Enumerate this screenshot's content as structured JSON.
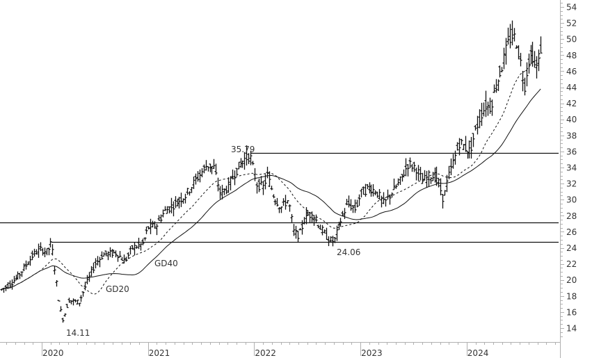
{
  "chart_data": {
    "type": "ohlc",
    "title": "",
    "xlabel": "",
    "ylabel": "",
    "ylim": [
      12,
      55
    ],
    "y_ticks": [
      14,
      16,
      18,
      20,
      22,
      24,
      26,
      28,
      30,
      32,
      34,
      36,
      38,
      40,
      42,
      44,
      46,
      48,
      50,
      52,
      54
    ],
    "x_ticks": [
      "2020",
      "2021",
      "2022",
      "2023",
      "2024"
    ],
    "grid": false,
    "colors": {
      "bars": "#111111",
      "lines": "#111111",
      "axis": "#b0b0b0",
      "text": "#333333"
    },
    "price_path": [
      {
        "t": 2019.62,
        "p": 18.8
      },
      {
        "t": 2019.7,
        "p": 19.5
      },
      {
        "t": 2019.78,
        "p": 20.5
      },
      {
        "t": 2019.85,
        "p": 21.8
      },
      {
        "t": 2019.92,
        "p": 23.2
      },
      {
        "t": 2019.98,
        "p": 23.8
      },
      {
        "t": 2020.05,
        "p": 23.5
      },
      {
        "t": 2020.09,
        "p": 24.7
      },
      {
        "t": 2020.12,
        "p": 21.5
      },
      {
        "t": 2020.17,
        "p": 16.5
      },
      {
        "t": 2020.2,
        "p": 15.0
      },
      {
        "t": 2020.25,
        "p": 17.5
      },
      {
        "t": 2020.35,
        "p": 17.2
      },
      {
        "t": 2020.42,
        "p": 19.5
      },
      {
        "t": 2020.5,
        "p": 22.0
      },
      {
        "t": 2020.58,
        "p": 23.2
      },
      {
        "t": 2020.7,
        "p": 23.4
      },
      {
        "t": 2020.78,
        "p": 22.3
      },
      {
        "t": 2020.85,
        "p": 24.0
      },
      {
        "t": 2020.95,
        "p": 24.5
      },
      {
        "t": 2021.0,
        "p": 26.5
      },
      {
        "t": 2021.08,
        "p": 26.8
      },
      {
        "t": 2021.15,
        "p": 28.5
      },
      {
        "t": 2021.25,
        "p": 29.5
      },
      {
        "t": 2021.35,
        "p": 30.5
      },
      {
        "t": 2021.45,
        "p": 32.5
      },
      {
        "t": 2021.55,
        "p": 34.3
      },
      {
        "t": 2021.62,
        "p": 34.0
      },
      {
        "t": 2021.68,
        "p": 30.8
      },
      {
        "t": 2021.75,
        "p": 31.5
      },
      {
        "t": 2021.82,
        "p": 33.5
      },
      {
        "t": 2021.9,
        "p": 35.0
      },
      {
        "t": 2021.96,
        "p": 35.5
      },
      {
        "t": 2022.02,
        "p": 32.0
      },
      {
        "t": 2022.08,
        "p": 31.5
      },
      {
        "t": 2022.12,
        "p": 33.0
      },
      {
        "t": 2022.18,
        "p": 30.5
      },
      {
        "t": 2022.25,
        "p": 29.0
      },
      {
        "t": 2022.32,
        "p": 30.0
      },
      {
        "t": 2022.37,
        "p": 26.0
      },
      {
        "t": 2022.42,
        "p": 25.5
      },
      {
        "t": 2022.48,
        "p": 28.0
      },
      {
        "t": 2022.55,
        "p": 28.2
      },
      {
        "t": 2022.62,
        "p": 26.5
      },
      {
        "t": 2022.7,
        "p": 25.0
      },
      {
        "t": 2022.75,
        "p": 24.8
      },
      {
        "t": 2022.8,
        "p": 27.0
      },
      {
        "t": 2022.88,
        "p": 29.5
      },
      {
        "t": 2022.95,
        "p": 28.8
      },
      {
        "t": 2023.0,
        "p": 30.8
      },
      {
        "t": 2023.08,
        "p": 31.5
      },
      {
        "t": 2023.15,
        "p": 31.0
      },
      {
        "t": 2023.22,
        "p": 29.5
      },
      {
        "t": 2023.3,
        "p": 31.0
      },
      {
        "t": 2023.38,
        "p": 32.5
      },
      {
        "t": 2023.45,
        "p": 34.5
      },
      {
        "t": 2023.52,
        "p": 34.0
      },
      {
        "t": 2023.58,
        "p": 32.3
      },
      {
        "t": 2023.65,
        "p": 33.0
      },
      {
        "t": 2023.72,
        "p": 32.8
      },
      {
        "t": 2023.78,
        "p": 30.0
      },
      {
        "t": 2023.82,
        "p": 32.5
      },
      {
        "t": 2023.88,
        "p": 35.0
      },
      {
        "t": 2023.93,
        "p": 37.2
      },
      {
        "t": 2023.98,
        "p": 36.5
      },
      {
        "t": 2024.03,
        "p": 36.0
      },
      {
        "t": 2024.08,
        "p": 38.5
      },
      {
        "t": 2024.13,
        "p": 40.5
      },
      {
        "t": 2024.18,
        "p": 41.8
      },
      {
        "t": 2024.22,
        "p": 41.5
      },
      {
        "t": 2024.28,
        "p": 44.5
      },
      {
        "t": 2024.33,
        "p": 46.5
      },
      {
        "t": 2024.38,
        "p": 49.0
      },
      {
        "t": 2024.42,
        "p": 50.5
      },
      {
        "t": 2024.46,
        "p": 50.0
      },
      {
        "t": 2024.5,
        "p": 47.5
      },
      {
        "t": 2024.54,
        "p": 44.0
      },
      {
        "t": 2024.58,
        "p": 47.5
      },
      {
        "t": 2024.62,
        "p": 48.0
      },
      {
        "t": 2024.65,
        "p": 46.0
      },
      {
        "t": 2024.7,
        "p": 49.0
      }
    ],
    "horizontal_lines": [
      {
        "level": 35.8,
        "from": 2021.97,
        "to": 2024.82
      },
      {
        "level": 27.2,
        "from": 2019.6,
        "to": 2024.82
      },
      {
        "level": 24.7,
        "from": 2020.09,
        "to": 2024.82
      }
    ],
    "moving_averages": [
      {
        "name": "GD20",
        "style": "dashed"
      },
      {
        "name": "GD40",
        "style": "solid"
      }
    ],
    "annotations": [
      {
        "text": "14.11",
        "t": 2020.22,
        "p": 14.11,
        "type": "low"
      },
      {
        "text": "35.79",
        "t": 2021.97,
        "p": 35.79,
        "type": "high"
      },
      {
        "text": "24.06",
        "t": 2022.75,
        "p": 24.06,
        "type": "low"
      },
      {
        "text": "GD20",
        "type": "label"
      },
      {
        "text": "GD40",
        "type": "label"
      }
    ]
  },
  "labels": {
    "low_2020": "14.11",
    "high_2021": "35.79",
    "low_2022": "24.06",
    "gd20": "GD20",
    "gd40": "GD40"
  }
}
